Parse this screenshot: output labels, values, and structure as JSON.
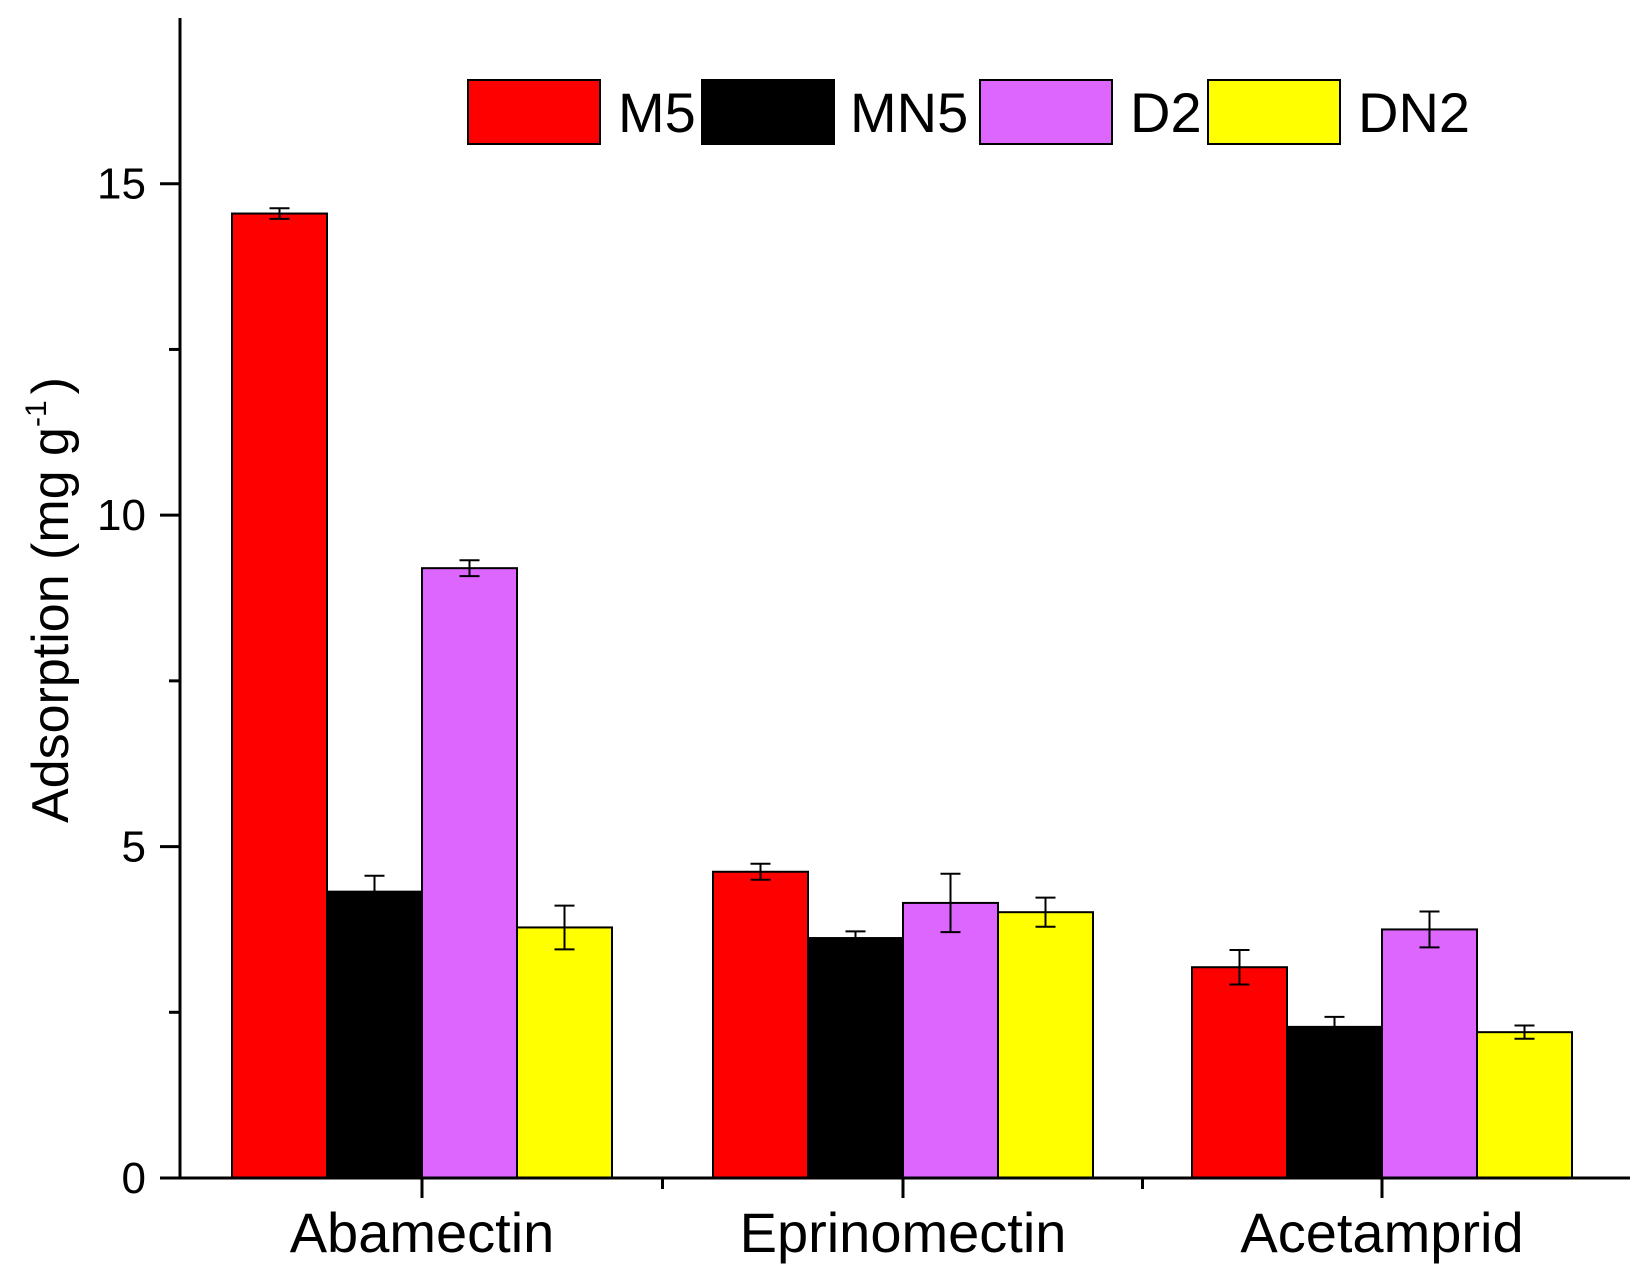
{
  "chart_data": {
    "type": "bar",
    "title": "",
    "xlabel": "",
    "ylabel": {
      "text": "Adsorption (mg g",
      "superscript": "-1",
      "close": ")"
    },
    "ylim": [
      0,
      17.5
    ],
    "yticks": [
      "0",
      "5",
      "10",
      "15"
    ],
    "categories": [
      "Abamectin",
      "Eprinomectin",
      "Acetamprid"
    ],
    "series": [
      {
        "name": "M5",
        "color": "#ff0000",
        "values": [
          14.55,
          4.62,
          3.18
        ],
        "errors": [
          0.08,
          0.12,
          0.26
        ]
      },
      {
        "name": "MN5",
        "color": "#000000",
        "values": [
          4.32,
          3.62,
          2.28
        ],
        "errors": [
          0.24,
          0.1,
          0.15
        ]
      },
      {
        "name": "D2",
        "color": "#dd66ff",
        "values": [
          9.2,
          4.15,
          3.75
        ],
        "errors": [
          0.12,
          0.44,
          0.27
        ]
      },
      {
        "name": "DN2",
        "color": "#ffff00",
        "values": [
          3.78,
          4.01,
          2.2
        ],
        "errors": [
          0.33,
          0.22,
          0.1
        ]
      }
    ],
    "legend_position": "top-right"
  }
}
